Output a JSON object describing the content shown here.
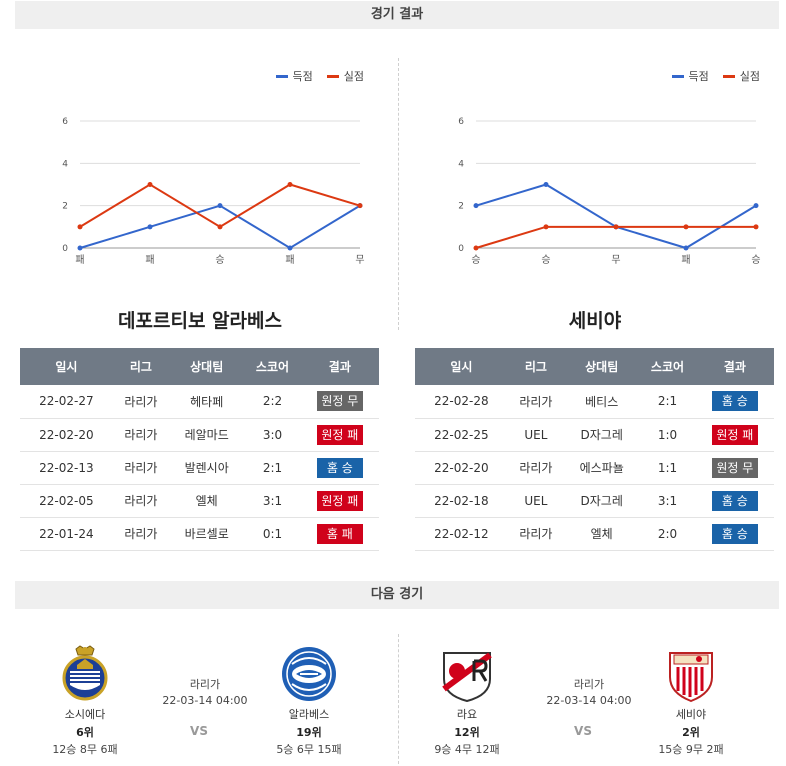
{
  "section1": {
    "title": "경기 결과"
  },
  "section2": {
    "title": "다음 경기"
  },
  "colors": {
    "scored": "#3366cc",
    "conceded": "#dc3912",
    "win": "#1a63a8",
    "loss": "#d0021b",
    "draw": "#666666",
    "header": "#707a86"
  },
  "legend": {
    "scored": "득점",
    "conceded": "실점"
  },
  "chart_data": [
    {
      "type": "line",
      "categories": [
        "패",
        "패",
        "승",
        "패",
        "무"
      ],
      "ylim": [
        0,
        6
      ],
      "yticks": [
        0,
        2,
        4,
        6
      ],
      "grid": true,
      "legend_placement": "top-right",
      "series": [
        {
          "name": "득점",
          "values": [
            0,
            1,
            2,
            0,
            2
          ]
        },
        {
          "name": "실점",
          "values": [
            1,
            3,
            1,
            3,
            2
          ]
        }
      ]
    },
    {
      "type": "line",
      "categories": [
        "승",
        "승",
        "무",
        "패",
        "승"
      ],
      "ylim": [
        0,
        6
      ],
      "yticks": [
        0,
        2,
        4,
        6
      ],
      "grid": true,
      "legend_placement": "top-right",
      "series": [
        {
          "name": "득점",
          "values": [
            2,
            3,
            1,
            0,
            2
          ]
        },
        {
          "name": "실점",
          "values": [
            0,
            1,
            1,
            1,
            1
          ]
        }
      ]
    }
  ],
  "left_team": {
    "name": "데포르티보 알라베스",
    "headers": [
      "일시",
      "리그",
      "상대팀",
      "스코어",
      "결과"
    ],
    "rows": [
      {
        "date": "22-02-27",
        "league": "라리가",
        "opponent": "헤타페",
        "score": "2:2",
        "result": "원정 무",
        "type": "draw"
      },
      {
        "date": "22-02-20",
        "league": "라리가",
        "opponent": "레알마드",
        "score": "3:0",
        "result": "원정 패",
        "type": "loss"
      },
      {
        "date": "22-02-13",
        "league": "라리가",
        "opponent": "발렌시아",
        "score": "2:1",
        "result": "홈 승",
        "type": "win"
      },
      {
        "date": "22-02-05",
        "league": "라리가",
        "opponent": "엘체",
        "score": "3:1",
        "result": "원정 패",
        "type": "loss"
      },
      {
        "date": "22-01-24",
        "league": "라리가",
        "opponent": "바르셀로",
        "score": "0:1",
        "result": "홈 패",
        "type": "loss"
      }
    ]
  },
  "right_team": {
    "name": "세비야",
    "headers": [
      "일시",
      "리그",
      "상대팀",
      "스코어",
      "결과"
    ],
    "rows": [
      {
        "date": "22-02-28",
        "league": "라리가",
        "opponent": "베티스",
        "score": "2:1",
        "result": "홈 승",
        "type": "win"
      },
      {
        "date": "22-02-25",
        "league": "UEL",
        "opponent": "D자그레",
        "score": "1:0",
        "result": "원정 패",
        "type": "loss"
      },
      {
        "date": "22-02-20",
        "league": "라리가",
        "opponent": "에스파뇰",
        "score": "1:1",
        "result": "원정 무",
        "type": "draw"
      },
      {
        "date": "22-02-18",
        "league": "UEL",
        "opponent": "D자그레",
        "score": "3:1",
        "result": "홈 승",
        "type": "win"
      },
      {
        "date": "22-02-12",
        "league": "라리가",
        "opponent": "엘체",
        "score": "2:0",
        "result": "홈 승",
        "type": "win"
      }
    ]
  },
  "next_left": {
    "home": {
      "name": "소시에다",
      "rank": "6위",
      "record": "12승 8무 6패",
      "logo": "real-sociedad-crest"
    },
    "away": {
      "name": "알라베스",
      "rank": "19위",
      "record": "5승 6무 15패",
      "logo": "alaves-crest"
    },
    "league": "라리가",
    "datetime": "22-03-14 04:00",
    "vs": "VS"
  },
  "next_right": {
    "home": {
      "name": "라요",
      "rank": "12위",
      "record": "9승 4무 12패",
      "logo": "rayo-vallecano-crest"
    },
    "away": {
      "name": "세비야",
      "rank": "2위",
      "record": "15승 9무 2패",
      "logo": "sevilla-crest"
    },
    "league": "라리가",
    "datetime": "22-03-14 04:00",
    "vs": "VS"
  }
}
